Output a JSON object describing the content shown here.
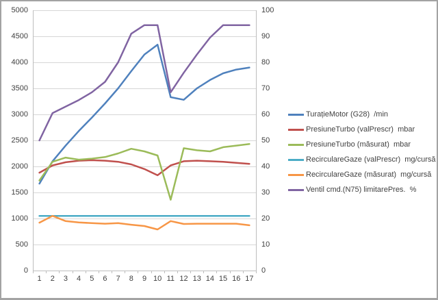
{
  "chart_data": {
    "type": "line",
    "title": "",
    "grid": true,
    "legend_position": "right",
    "x": [
      1,
      2,
      3,
      4,
      5,
      6,
      7,
      8,
      9,
      10,
      11,
      12,
      13,
      14,
      15,
      16,
      17
    ],
    "axes": {
      "left": {
        "min": 0,
        "max": 5000,
        "step": 500,
        "ticks": [
          "5000",
          "4500",
          "4000",
          "3500",
          "3000",
          "2500",
          "2000",
          "1500",
          "1000",
          "500",
          "0"
        ]
      },
      "right": {
        "min": 0,
        "max": 100,
        "step": 10,
        "ticks": [
          "100",
          "90",
          "80",
          "70",
          "60",
          "50",
          "40",
          "30",
          "20",
          "10",
          "0"
        ]
      },
      "x": {
        "ticks": [
          "1",
          "2",
          "3",
          "4",
          "5",
          "6",
          "7",
          "8",
          "9",
          "10",
          "11",
          "12",
          "13",
          "14",
          "15",
          "16",
          "17"
        ]
      }
    },
    "series": [
      {
        "name": "TurațieMotor (G28)  /min",
        "axis": "left",
        "color": "#4F81BD",
        "values": [
          1670,
          2100,
          2400,
          2680,
          2940,
          3210,
          3500,
          3830,
          4150,
          4340,
          3330,
          3280,
          3500,
          3660,
          3790,
          3860,
          3900
        ]
      },
      {
        "name": "PresiuneTurbo (valPrescr)  mbar",
        "axis": "left",
        "color": "#C0504D",
        "values": [
          1880,
          2020,
          2080,
          2110,
          2120,
          2110,
          2090,
          2040,
          1950,
          1830,
          2020,
          2100,
          2110,
          2100,
          2090,
          2070,
          2050
        ]
      },
      {
        "name": "PresiuneTurbo (măsurat)  mbar",
        "axis": "left",
        "color": "#9BBB59",
        "values": [
          1730,
          2090,
          2170,
          2130,
          2150,
          2180,
          2250,
          2340,
          2290,
          2210,
          1360,
          2350,
          2310,
          2290,
          2370,
          2400,
          2430
        ]
      },
      {
        "name": "RecirculareGaze (valPrescr)  mg/cursă",
        "axis": "right",
        "color": "#4BACC6",
        "values": [
          21,
          21,
          21,
          21,
          21,
          21,
          21,
          21,
          21,
          21,
          21,
          21,
          21,
          21,
          21,
          21,
          21
        ]
      },
      {
        "name": "RecirculareGaze (măsurat)  mg/cursă",
        "axis": "right",
        "color": "#F79646",
        "values": [
          18.4,
          21,
          19,
          18.5,
          18.2,
          18,
          18.2,
          17.6,
          17.1,
          15.8,
          19,
          17.9,
          18,
          18,
          18,
          18,
          17.4
        ]
      },
      {
        "name": "Ventil cmd.(N75) limitarePres.  %",
        "axis": "right",
        "color": "#8064A2",
        "values": [
          50,
          60.5,
          63,
          65.5,
          68.5,
          72.5,
          80,
          91,
          94.3,
          94.3,
          68.5,
          76,
          83,
          89.5,
          94.3,
          94.3,
          94.3
        ]
      }
    ],
    "style": {
      "gridline_color": "#d6d6d6",
      "axis_line_color": "#bdbdbd",
      "label_color": "#3f3f3f"
    }
  }
}
